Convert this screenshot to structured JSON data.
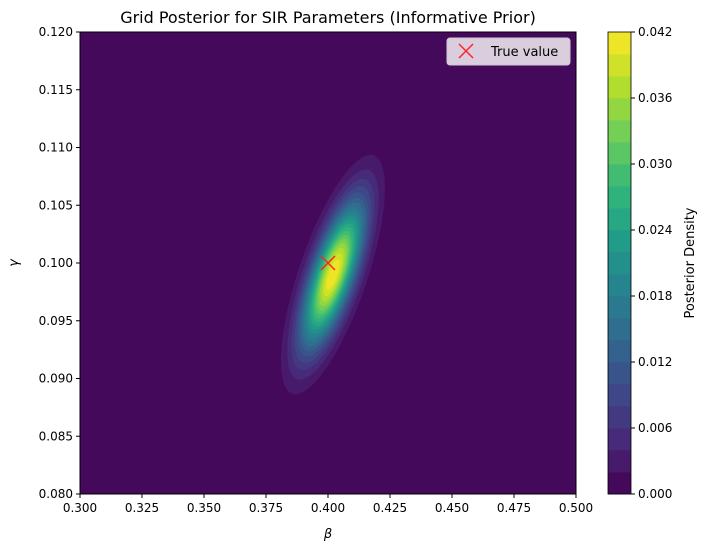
{
  "chart_data": {
    "type": "heatmap",
    "title": "Grid Posterior for SIR Parameters (Informative Prior)",
    "xlabel": "β",
    "ylabel": "γ",
    "xlim": [
      0.3,
      0.5
    ],
    "ylim": [
      0.08,
      0.12
    ],
    "xticks": [
      "0.300",
      "0.325",
      "0.350",
      "0.375",
      "0.400",
      "0.425",
      "0.450",
      "0.475",
      "0.500"
    ],
    "yticks": [
      "0.080",
      "0.085",
      "0.090",
      "0.095",
      "0.100",
      "0.105",
      "0.110",
      "0.115",
      "0.120"
    ],
    "colorbar": {
      "label": "Posterior Density",
      "range": [
        0.0,
        0.042
      ],
      "ticks": [
        "0.000",
        "0.006",
        "0.012",
        "0.018",
        "0.024",
        "0.030",
        "0.036",
        "0.042"
      ],
      "levels": 21
    },
    "density_model": {
      "center": [
        0.402,
        0.099
      ],
      "sd_beta": 0.0085,
      "sd_gamma": 0.0042,
      "correlation": 0.72,
      "peak": 0.042
    },
    "markers": [
      {
        "name": "True value",
        "x": 0.4,
        "y": 0.1,
        "symbol": "x",
        "color": "#ff2020"
      }
    ],
    "legend": {
      "position": "top-right",
      "entries": [
        "True value"
      ]
    }
  },
  "colors": {
    "viridis": [
      "#440154",
      "#482878",
      "#3e4989",
      "#31688e",
      "#26828e",
      "#1f9e89",
      "#35b779",
      "#6ece58",
      "#b5de2b",
      "#fde725"
    ]
  }
}
